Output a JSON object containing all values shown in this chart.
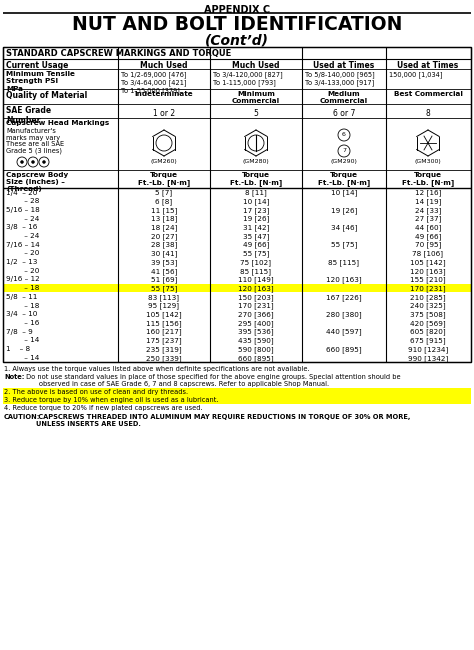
{
  "title_appendix": "APPENDIX C",
  "title_main": "NUT AND BOLT IDENTIFICATION",
  "title_sub": "(Cont’d)",
  "table_title": "STANDARD CAPSCREW MARKINGS AND TORQUE",
  "torque_rows": [
    {
      "size": "1/4  – 20",
      "indent": false,
      "c1": "5 [7]",
      "c2": "8 [11]",
      "c3": "10 [14]",
      "c4": "12 [16]",
      "hl": false
    },
    {
      "size": "     – 28",
      "indent": true,
      "c1": "6 [8]",
      "c2": "10 [14]",
      "c3": "",
      "c4": "14 [19]",
      "hl": false
    },
    {
      "size": "5/16 – 18",
      "indent": false,
      "c1": "11 [15]",
      "c2": "17 [23]",
      "c3": "19 [26]",
      "c4": "24 [33]",
      "hl": false
    },
    {
      "size": "     – 24",
      "indent": true,
      "c1": "13 [18]",
      "c2": "19 [26]",
      "c3": "",
      "c4": "27 [37]",
      "hl": false
    },
    {
      "size": "3/8  – 16",
      "indent": false,
      "c1": "18 [24]",
      "c2": "31 [42]",
      "c3": "34 [46]",
      "c4": "44 [60]",
      "hl": false
    },
    {
      "size": "     – 24",
      "indent": true,
      "c1": "20 [27]",
      "c2": "35 [47]",
      "c3": "",
      "c4": "49 [66]",
      "hl": false
    },
    {
      "size": "7/16 – 14",
      "indent": false,
      "c1": "28 [38]",
      "c2": "49 [66]",
      "c3": "55 [75]",
      "c4": "70 [95]",
      "hl": false
    },
    {
      "size": "     – 20",
      "indent": true,
      "c1": "30 [41]",
      "c2": "55 [75]",
      "c3": "",
      "c4": "78 [106]",
      "hl": false
    },
    {
      "size": "1/2  – 13",
      "indent": false,
      "c1": "39 [53]",
      "c2": "75 [102]",
      "c3": "85 [115]",
      "c4": "105 [142]",
      "hl": false
    },
    {
      "size": "     – 20",
      "indent": true,
      "c1": "41 [56]",
      "c2": "85 [115]",
      "c3": "",
      "c4": "120 [163]",
      "hl": false
    },
    {
      "size": "9/16 – 12",
      "indent": false,
      "c1": "51 [69]",
      "c2": "110 [149]",
      "c3": "120 [163]",
      "c4": "155 [210]",
      "hl": false
    },
    {
      "size": "     – 18",
      "indent": true,
      "c1": "55 [75]",
      "c2": "120 [163]",
      "c3": "",
      "c4": "170 [231]",
      "hl": true
    },
    {
      "size": "5/8  – 11",
      "indent": false,
      "c1": "83 [113]",
      "c2": "150 [203]",
      "c3": "167 [226]",
      "c4": "210 [285]",
      "hl": false
    },
    {
      "size": "     – 18",
      "indent": true,
      "c1": "95 [129]",
      "c2": "170 [231]",
      "c3": "",
      "c4": "240 [325]",
      "hl": false
    },
    {
      "size": "3/4  – 10",
      "indent": false,
      "c1": "105 [142]",
      "c2": "270 [366]",
      "c3": "280 [380]",
      "c4": "375 [508]",
      "hl": false
    },
    {
      "size": "     – 16",
      "indent": true,
      "c1": "115 [156]",
      "c2": "295 [400]",
      "c3": "",
      "c4": "420 [569]",
      "hl": false
    },
    {
      "size": "7/8  – 9",
      "indent": false,
      "c1": "160 [217]",
      "c2": "395 [536]",
      "c3": "440 [597]",
      "c4": "605 [820]",
      "hl": false
    },
    {
      "size": "     – 14",
      "indent": true,
      "c1": "175 [237]",
      "c2": "435 [590]",
      "c3": "",
      "c4": "675 [915]",
      "hl": false
    },
    {
      "size": "1    – 8",
      "indent": false,
      "c1": "235 [319]",
      "c2": "590 [800]",
      "c3": "660 [895]",
      "c4": "910 [1234]",
      "hl": false
    },
    {
      "size": "     – 14",
      "indent": true,
      "c1": "250 [339]",
      "c2": "660 [895]",
      "c3": "",
      "c4": "990 [1342]",
      "hl": false
    }
  ],
  "note1": "1. Always use the torque values listed above when definite specifications are not available.",
  "note2_bold": "Note:",
  "note2_rest": " Do not use standard values in place of those specified for the above engine groups. Special attention should be\nobserved in case of SAE Grade 6, 7 and 8 capscrews. Refer to applicable Shop Manual.",
  "note3": "2. The above is based on use of clean and dry threads.",
  "note4": "3. Reduce torque by 10% when engine oil is used as a lubricant.",
  "note5": "4. Reduce torque to 20% if new plated capscrews are used.",
  "caution_bold": "CAUTION:",
  "caution_rest": " CAPSCREWS THREADED INTO ALUMINUM MAY REQUIRE REDUCTIONS IN TORQUE OF 30% OR MORE,\nUNLESS INSERTS ARE USED.",
  "highlight_color": "#FFFF00",
  "bg_color": "#FFFFFF"
}
